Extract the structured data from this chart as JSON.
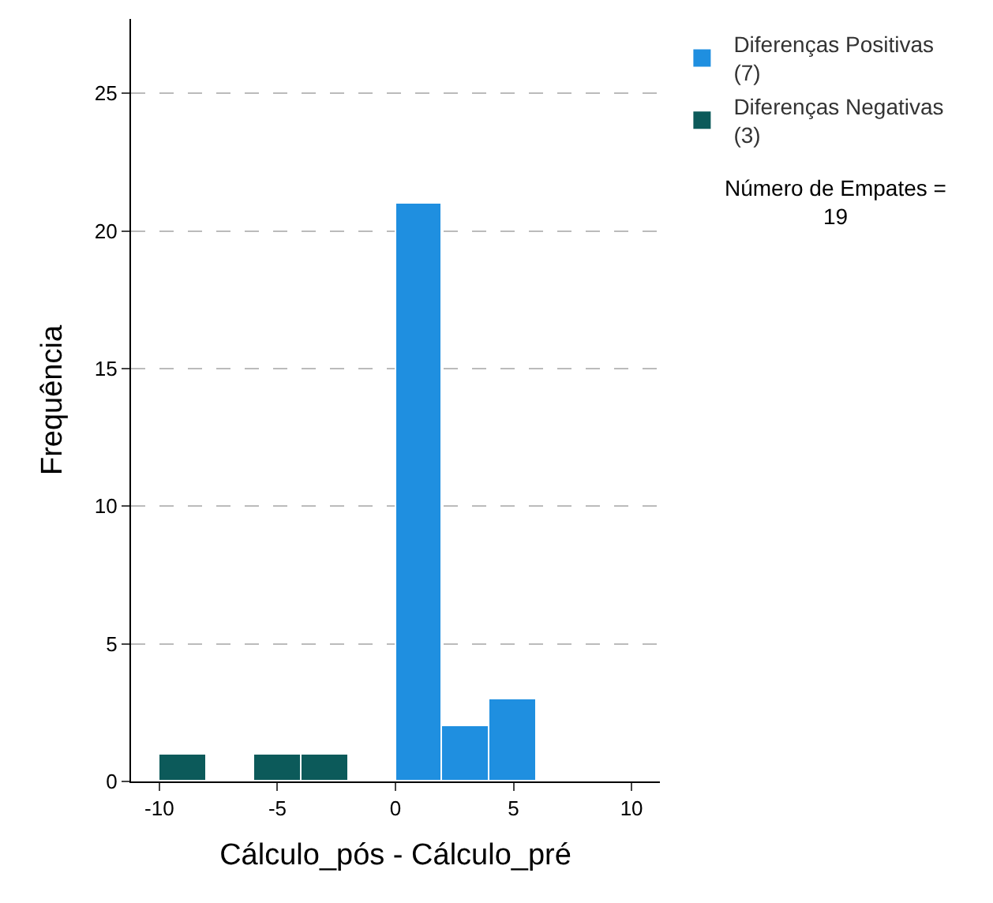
{
  "chart_data": {
    "type": "histogram",
    "xlabel": "Cálculo_pós - Cálculo_pré",
    "ylabel": "Frequência",
    "bins": [
      -10,
      -8,
      -6,
      -4,
      -2,
      0,
      2,
      4,
      6
    ],
    "series": [
      {
        "name": "Diferenças Positivas\n(7)",
        "color": "#1f8fe0",
        "values": [
          null,
          null,
          null,
          null,
          null,
          21,
          2,
          3
        ]
      },
      {
        "name": "Diferenças Negativas\n(3)",
        "color": "#0c5a5a",
        "values": [
          1,
          null,
          1,
          1,
          null,
          null,
          null,
          null
        ]
      }
    ],
    "xlim": [
      -11.2,
      11.2
    ],
    "xticks": [
      -10,
      -5,
      0,
      5,
      10
    ],
    "ylim": [
      0,
      27.7
    ],
    "yticks": [
      0,
      5,
      10,
      15,
      20,
      25
    ],
    "grid": "y",
    "line_style": "dashed",
    "legend": "top right",
    "annotations": [
      "Número de Empates =\n19"
    ]
  }
}
